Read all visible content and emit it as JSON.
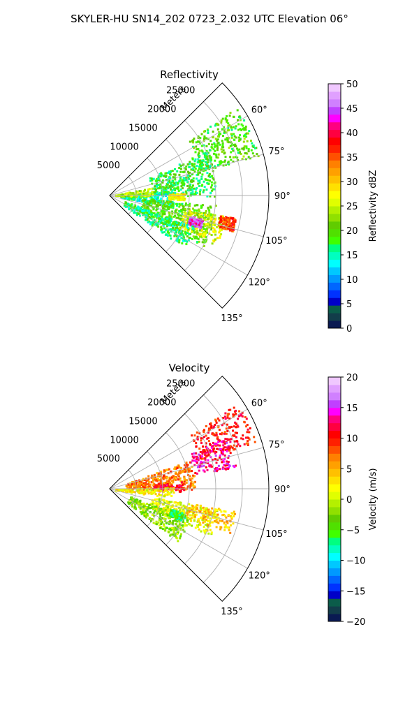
{
  "figure": {
    "suptitle": "SKYLER-HU  SN14_202  0723_2.032 UTC Elevation 06°"
  },
  "chart_data": [
    {
      "type": "heatmap",
      "projection": "polar-sector",
      "title": "Reflectivity",
      "radial_label": "Meters",
      "radial_ticks": [
        5000,
        10000,
        15000,
        20000,
        25000
      ],
      "radial_tick_labels": [
        "5000",
        "10000",
        "15000",
        "20000",
        "25000"
      ],
      "r_max": 30000,
      "theta_ticks_deg": [
        60,
        75,
        90,
        105,
        120,
        135
      ],
      "theta_tick_labels": [
        "60°",
        "75°",
        "90°",
        "105°",
        "120°",
        "135°"
      ],
      "theta_range_deg": [
        45,
        135
      ],
      "grid": true,
      "colorbar": {
        "label": "Reflectivity dBZ",
        "range": [
          0,
          50
        ],
        "ticks": [
          0,
          5,
          10,
          15,
          20,
          25,
          30,
          35,
          40,
          45,
          50
        ],
        "tick_labels": [
          "0",
          "5",
          "10",
          "15",
          "20",
          "25",
          "30",
          "35",
          "40",
          "45",
          "50"
        ],
        "colors": [
          "#0a1a52",
          "#123d4a",
          "#0b5c4a",
          "#0000c8",
          "#0032ff",
          "#0066ff",
          "#0099ff",
          "#00c8ff",
          "#00ffff",
          "#00ffc0",
          "#00ff80",
          "#40ff00",
          "#50e000",
          "#60cc00",
          "#90e000",
          "#b4f000",
          "#e0ff00",
          "#ffff00",
          "#ffe000",
          "#ffc000",
          "#ffa000",
          "#ff8000",
          "#ff5000",
          "#ff2000",
          "#ff0000",
          "#ff0040",
          "#ff0080",
          "#ff00ff",
          "#c040ff",
          "#d080ff",
          "#e0a0ff",
          "#f0c8ff"
        ],
        "orientation": "vertical"
      },
      "echo_regions": [
        {
          "theta_deg": [
            55,
            75
          ],
          "r": [
            18000,
            29000
          ],
          "value": 20
        },
        {
          "theta_deg": [
            65,
            90
          ],
          "r": [
            8000,
            20000
          ],
          "value": 18
        },
        {
          "theta_deg": [
            85,
            100
          ],
          "r": [
            2000,
            12000
          ],
          "value": 15
        },
        {
          "theta_deg": [
            78,
            90
          ],
          "r": [
            1000,
            8000
          ],
          "value": 24
        },
        {
          "theta_deg": [
            95,
            118
          ],
          "r": [
            6000,
            20000
          ],
          "value": 20
        },
        {
          "theta_deg": [
            100,
            115
          ],
          "r": [
            14000,
            22000
          ],
          "value": 26
        },
        {
          "theta_deg": [
            104,
            110
          ],
          "r": [
            15500,
            18000
          ],
          "value": 44
        },
        {
          "theta_deg": [
            100,
            106
          ],
          "r": [
            21000,
            24000
          ],
          "value": 36
        },
        {
          "theta_deg": [
            88,
            93
          ],
          "r": [
            11000,
            14000
          ],
          "value": 28
        },
        {
          "theta_deg": [
            110,
            125
          ],
          "r": [
            3000,
            17000
          ],
          "value": 17
        }
      ]
    },
    {
      "type": "heatmap",
      "projection": "polar-sector",
      "title": "Velocity",
      "radial_label": "Meters",
      "radial_ticks": [
        5000,
        10000,
        15000,
        20000,
        25000
      ],
      "radial_tick_labels": [
        "5000",
        "10000",
        "15000",
        "20000",
        "25000"
      ],
      "r_max": 30000,
      "theta_ticks_deg": [
        60,
        75,
        90,
        105,
        120,
        135
      ],
      "theta_tick_labels": [
        "60°",
        "75°",
        "90°",
        "105°",
        "120°",
        "135°"
      ],
      "theta_range_deg": [
        45,
        135
      ],
      "grid": true,
      "colorbar": {
        "label": "Velocity (m/s)",
        "range": [
          -20,
          20
        ],
        "ticks": [
          -20,
          -15,
          -10,
          -5,
          0,
          5,
          10,
          15,
          20
        ],
        "tick_labels": [
          "−20",
          "−15",
          "−10",
          "−5",
          "0",
          "5",
          "10",
          "15",
          "20"
        ],
        "colors": [
          "#0a1a52",
          "#123d4a",
          "#0b5c4a",
          "#0000c8",
          "#0032ff",
          "#0066ff",
          "#0099ff",
          "#00c8ff",
          "#00ffff",
          "#00ffc0",
          "#00ff80",
          "#40ff00",
          "#50e000",
          "#60cc00",
          "#90e000",
          "#b4f000",
          "#e0ff00",
          "#ffff00",
          "#ffe000",
          "#ffc000",
          "#ffa000",
          "#ff8000",
          "#ff5000",
          "#ff2000",
          "#ff0000",
          "#ff0040",
          "#ff0080",
          "#ff00ff",
          "#c040ff",
          "#d080ff",
          "#e0a0ff",
          "#f0c8ff"
        ],
        "orientation": "vertical"
      },
      "echo_regions": [
        {
          "theta_deg": [
            56,
            72
          ],
          "r": [
            18000,
            29000
          ],
          "value": 10
        },
        {
          "theta_deg": [
            66,
            80
          ],
          "r": [
            16000,
            24000
          ],
          "value": 13
        },
        {
          "theta_deg": [
            70,
            90
          ],
          "r": [
            3000,
            16000
          ],
          "value": 7
        },
        {
          "theta_deg": [
            84,
            92
          ],
          "r": [
            8000,
            14000
          ],
          "value": 11
        },
        {
          "theta_deg": [
            88,
            98
          ],
          "r": [
            1000,
            12000
          ],
          "value": 2
        },
        {
          "theta_deg": [
            100,
            115
          ],
          "r": [
            8000,
            21000
          ],
          "value": 1
        },
        {
          "theta_deg": [
            100,
            110
          ],
          "r": [
            15000,
            24000
          ],
          "value": 4
        },
        {
          "theta_deg": [
            110,
            128
          ],
          "r": [
            4000,
            16000
          ],
          "value": -2
        },
        {
          "theta_deg": [
            108,
            114
          ],
          "r": [
            12000,
            15000
          ],
          "value": -6
        }
      ]
    }
  ]
}
